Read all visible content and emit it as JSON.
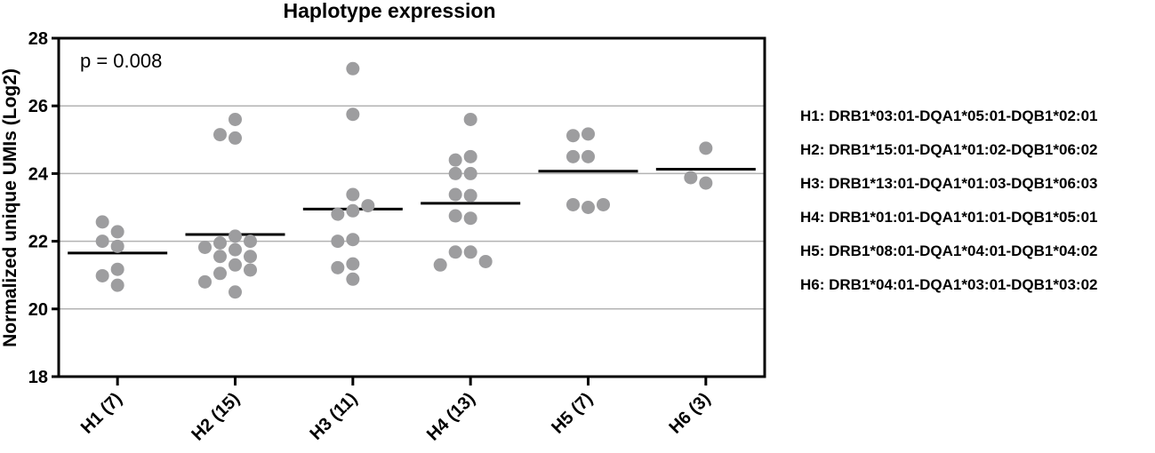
{
  "chart_data": {
    "type": "scatter",
    "title": "Haplotype expression",
    "ylabel": "Normalized unique UMIs (Log2)",
    "xlabel": "",
    "ylim": [
      18,
      28
    ],
    "yticks": [
      18,
      20,
      22,
      24,
      26,
      28
    ],
    "grid": true,
    "annotation": "p = 0.008",
    "categories": [
      "H1 (7)",
      "H2 (15)",
      "H3 (11)",
      "H4 (13)",
      "H5 (7)",
      "H6 (3)"
    ],
    "medians": [
      21.65,
      22.2,
      22.95,
      23.12,
      24.07,
      24.13
    ],
    "points": [
      [
        22.28,
        22.57,
        21.85,
        22.0,
        21.17,
        20.7,
        20.98
      ],
      [
        25.6,
        25.05,
        25.15,
        22.15,
        21.75,
        21.95,
        22.0,
        21.82,
        21.3,
        21.55,
        21.55,
        21.05,
        21.15,
        20.5,
        20.8
      ],
      [
        27.1,
        25.75,
        23.38,
        22.9,
        22.8,
        23.05,
        22.05,
        22.0,
        21.33,
        21.22,
        20.88
      ],
      [
        25.6,
        24.5,
        24.4,
        24.0,
        24.0,
        23.35,
        23.38,
        22.68,
        22.75,
        21.68,
        21.68,
        21.4,
        21.3
      ],
      [
        25.17,
        25.12,
        24.5,
        24.5,
        23.0,
        23.08,
        23.08
      ],
      [
        24.75,
        23.72,
        23.88
      ]
    ],
    "colors": {
      "points": "#9d9d9f",
      "median": "#000000",
      "grid": "#b3b3b3",
      "axis": "#000000"
    }
  },
  "legend": [
    "H1: DRB1*03:01-DQA1*05:01-DQB1*02:01",
    "H2: DRB1*15:01-DQA1*01:02-DQB1*06:02",
    "H3: DRB1*13:01-DQA1*01:03-DQB1*06:03",
    "H4: DRB1*01:01-DQA1*01:01-DQB1*05:01",
    "H5: DRB1*08:01-DQA1*04:01-DQB1*04:02",
    "H6: DRB1*04:01-DQA1*03:01-DQB1*03:02"
  ]
}
